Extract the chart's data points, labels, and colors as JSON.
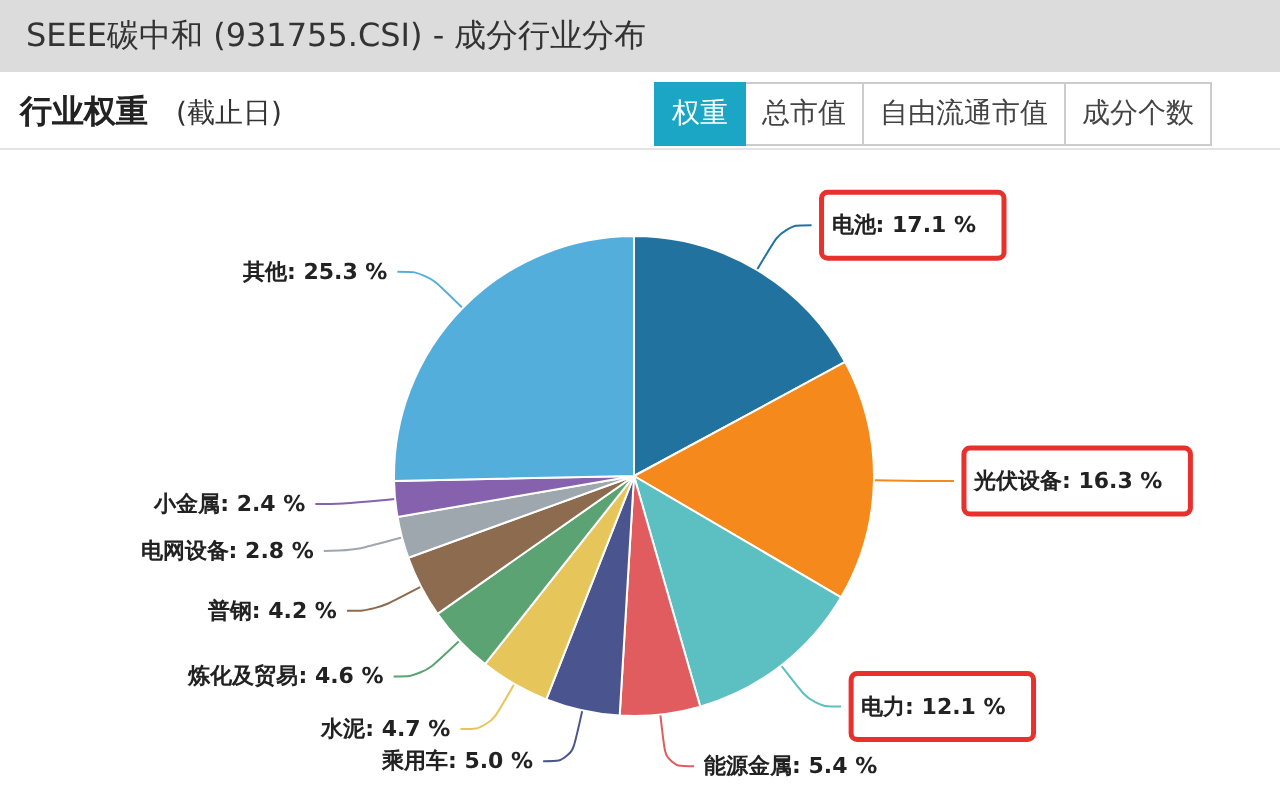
{
  "chart_data": {
    "type": "pie",
    "title": "SEEE碳中和 (931755.CSI) - 成分行业分布",
    "subtitle": "行业权重",
    "annotations": [
      "(截止日)",
      "权重",
      "总市值",
      "自由流通市值",
      "成分个数"
    ],
    "categories": [
      "电池",
      "光伏设备",
      "电力",
      "能源金属",
      "乘用车",
      "水泥",
      "炼化及贸易",
      "普钢",
      "电网设备",
      "小金属",
      "其他"
    ],
    "values": [
      17.1,
      16.3,
      12.1,
      5.4,
      5.0,
      4.7,
      4.6,
      4.2,
      2.8,
      2.4,
      25.3
    ],
    "value_labels": [
      "17.1 %",
      "16.3 %",
      "12.1 %",
      "5.4 %",
      "5.0 %",
      "4.7 %",
      "4.6 %",
      "4.2 %",
      "2.8 %",
      "2.4 %",
      "25.3 %"
    ],
    "colors": [
      "#2272a0",
      "#f5891c",
      "#5cbfc1",
      "#e05c5f",
      "#4a5590",
      "#e6c65a",
      "#5ba373",
      "#8c6b4f",
      "#9ea6ae",
      "#8661ad",
      "#54aedc"
    ],
    "legend": false
  }
}
